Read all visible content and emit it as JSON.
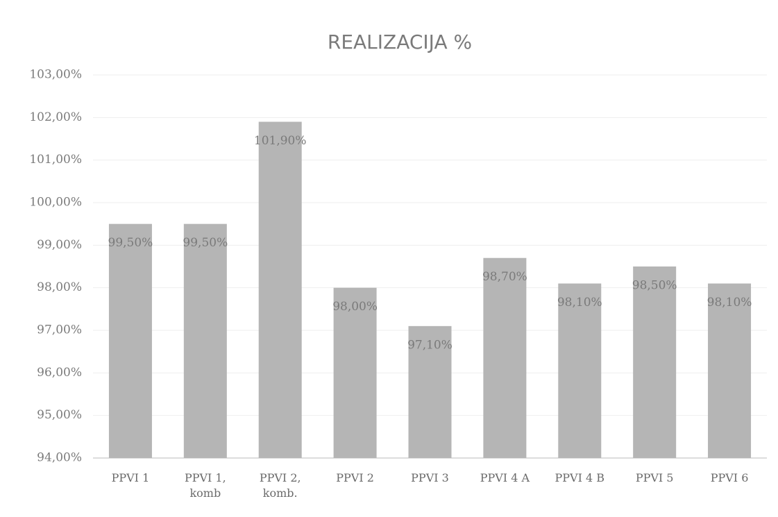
{
  "chart_data": {
    "type": "bar",
    "title": "REALIZACIJA %",
    "categories": [
      "PPVI 1",
      "PPVI 1, komb",
      "PPVI 2, komb.",
      "PPVI 2",
      "PPVI 3",
      "PPVI 4 A",
      "PPVI 4 B",
      "PPVI 5",
      "PPVI 6"
    ],
    "values": [
      99.5,
      99.5,
      101.9,
      98.0,
      97.1,
      98.7,
      98.1,
      98.5,
      98.1
    ],
    "value_labels": [
      "99,50%",
      "99,50%",
      "101,90%",
      "98,00%",
      "97,10%",
      "98,70%",
      "98,10%",
      "98,50%",
      "98,10%"
    ],
    "color": "#b5b5b5",
    "ylim": [
      94,
      103
    ],
    "yticks": [
      {
        "value": 94,
        "label": "94,00%"
      },
      {
        "value": 95,
        "label": "95,00%"
      },
      {
        "value": 96,
        "label": "96,00%"
      },
      {
        "value": 97,
        "label": "97,00%"
      },
      {
        "value": 98,
        "label": "98,00%"
      },
      {
        "value": 99,
        "label": "99,00%"
      },
      {
        "value": 100,
        "label": "100,00%"
      },
      {
        "value": 101,
        "label": "101,00%"
      },
      {
        "value": 102,
        "label": "102,00%"
      },
      {
        "value": 103,
        "label": "103,00%"
      }
    ],
    "grid": true
  }
}
